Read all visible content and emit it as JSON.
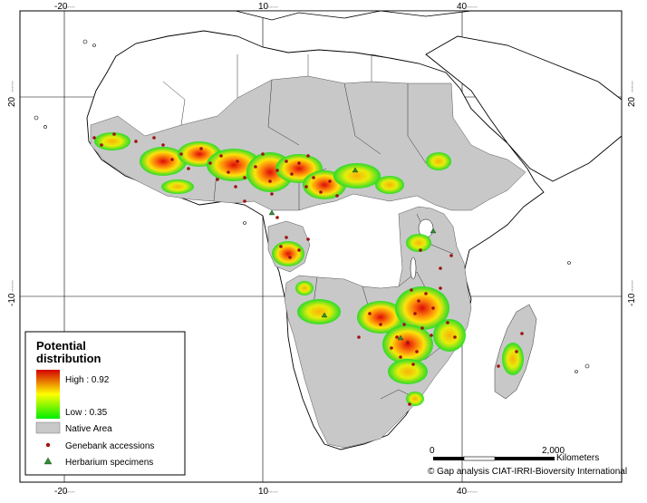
{
  "grid": {
    "lon_labels": [
      "-20",
      "10",
      "40"
    ],
    "lat_labels": [
      "20",
      "-10"
    ],
    "minor_label": "°°°°°°°°"
  },
  "legend": {
    "title_line1": "Potential",
    "title_line2": "distribution",
    "high_label": "High : 0.92",
    "low_label": "Low : 0.35",
    "native_area_label": "Native Area",
    "genebank_label": "Genebank accessions",
    "herbarium_label": "Herbarium specimens",
    "colors": {
      "high": "#d40000",
      "mid": "#ffff00",
      "low": "#00ee00",
      "native_area": "#c8c8c8",
      "genebank": "#a01010",
      "herbarium": "#2f8f2f"
    }
  },
  "scalebar": {
    "start_label": "0",
    "end_label": "2,000",
    "unit_label": "Kilometers"
  },
  "credit": "© Gap analysis CIAT-IRRI-Bioversity International"
}
